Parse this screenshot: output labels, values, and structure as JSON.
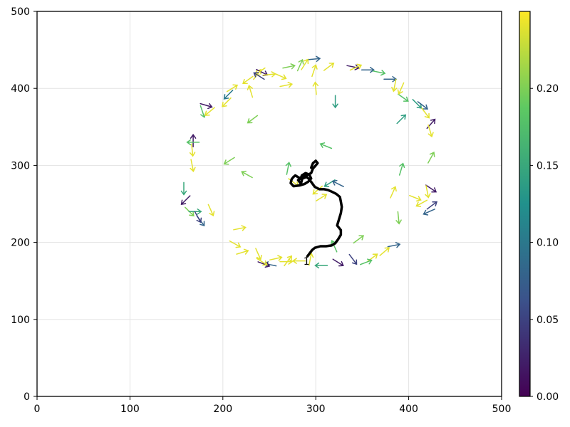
{
  "chart_data": {
    "type": "quiver",
    "title": "",
    "xlabel": "",
    "ylabel": "",
    "xlim": [
      0,
      500
    ],
    "ylim": [
      0,
      500
    ],
    "grid": true,
    "x_ticks": [
      "0",
      "100",
      "200",
      "300",
      "400",
      "500"
    ],
    "y_ticks": [
      "0",
      "100",
      "200",
      "300",
      "400",
      "500"
    ],
    "colorbar": {
      "colormap": "viridis",
      "range": [
        0,
        0.25
      ],
      "ticks": [
        "0.00",
        "0.05",
        "0.10",
        "0.15",
        "0.20"
      ],
      "stops": [
        "#440154",
        "#3b528b",
        "#21918c",
        "#5ec962",
        "#fde725"
      ]
    },
    "annotation": {
      "text": "1",
      "x": 290,
      "y": 171
    },
    "trajectory_color": "#000000",
    "trajectory": [
      [
        291,
        182
      ],
      [
        296,
        190
      ],
      [
        299,
        193
      ],
      [
        305,
        195
      ],
      [
        311,
        195
      ],
      [
        317,
        196
      ],
      [
        321,
        199
      ],
      [
        324,
        204
      ],
      [
        327,
        210
      ],
      [
        327,
        216
      ],
      [
        323,
        222
      ],
      [
        325,
        230
      ],
      [
        327,
        238
      ],
      [
        328,
        246
      ],
      [
        327,
        253
      ],
      [
        326,
        259
      ],
      [
        322,
        263
      ],
      [
        317,
        266
      ],
      [
        313,
        268
      ],
      [
        309,
        269
      ],
      [
        304,
        269
      ],
      [
        299,
        272
      ],
      [
        296,
        277
      ],
      [
        293,
        282
      ],
      [
        290,
        285
      ],
      [
        286,
        283
      ],
      [
        282,
        284
      ],
      [
        278,
        287
      ],
      [
        276,
        285
      ],
      [
        274,
        282
      ],
      [
        273,
        277
      ],
      [
        276,
        273
      ],
      [
        283,
        274
      ],
      [
        288,
        276
      ],
      [
        292,
        279
      ],
      [
        295,
        283
      ],
      [
        293,
        288
      ],
      [
        289,
        290
      ],
      [
        285,
        287
      ],
      [
        284,
        283
      ],
      [
        281,
        281
      ],
      [
        284,
        276
      ],
      [
        286,
        285
      ],
      [
        290,
        287
      ],
      [
        295,
        290
      ],
      [
        297,
        296
      ],
      [
        300,
        300
      ],
      [
        302,
        303
      ],
      [
        300,
        306
      ],
      [
        297,
        303
      ],
      [
        295,
        297
      ]
    ],
    "vectors": [
      [
        168,
        332,
        0,
        1,
        0.02
      ],
      [
        158,
        270,
        0,
        -1,
        0.15
      ],
      [
        160,
        255,
        -0.7,
        -0.7,
        0.02
      ],
      [
        164,
        240,
        0.7,
        -0.7,
        0.2
      ],
      [
        170,
        240,
        1,
        0,
        0.15
      ],
      [
        176,
        228,
        0.6,
        -0.8,
        0.08
      ],
      [
        173,
        233,
        0.5,
        -0.9,
        0.05
      ],
      [
        187,
        242,
        0.4,
        -0.9,
        0.24
      ],
      [
        167,
        300,
        0.2,
        -1,
        0.24
      ],
      [
        167,
        320,
        0.1,
        -1,
        0.24
      ],
      [
        168,
        330,
        -1,
        0,
        0.18
      ],
      [
        182,
        378,
        1,
        -0.3,
        0.02
      ],
      [
        178,
        370,
        0.3,
        -0.9,
        0.18
      ],
      [
        186,
        370,
        -0.6,
        -0.5,
        0.24
      ],
      [
        204,
        382,
        -0.6,
        -0.6,
        0.24
      ],
      [
        206,
        392,
        -0.7,
        -0.7,
        0.1
      ],
      [
        210,
        400,
        0.8,
        0.5,
        0.24
      ],
      [
        227,
        411,
        -0.7,
        -0.5,
        0.24
      ],
      [
        237,
        418,
        0.6,
        0.8,
        0.24
      ],
      [
        242,
        421,
        1,
        -0.5,
        0.02
      ],
      [
        250,
        418,
        1,
        0.1,
        0.24
      ],
      [
        262,
        416,
        0.9,
        -0.4,
        0.24
      ],
      [
        268,
        404,
        1,
        0.2,
        0.24
      ],
      [
        271,
        428,
        1,
        0.2,
        0.2
      ],
      [
        283,
        430,
        0.4,
        0.9,
        0.2
      ],
      [
        298,
        438,
        1,
        0.1,
        0.08
      ],
      [
        298,
        423,
        0.3,
        0.9,
        0.24
      ],
      [
        300,
        400,
        -0.1,
        1,
        0.24
      ],
      [
        288,
        431,
        0.5,
        0.8,
        0.24
      ],
      [
        314,
        428,
        0.8,
        0.6,
        0.24
      ],
      [
        340,
        428,
        1,
        -0.2,
        0.02
      ],
      [
        343,
        427,
        0.9,
        0.4,
        0.24
      ],
      [
        356,
        424,
        1,
        0,
        0.08
      ],
      [
        368,
        421,
        1,
        -0.2,
        0.18
      ],
      [
        380,
        412,
        1,
        0,
        0.08
      ],
      [
        385,
        404,
        -0.2,
        -1,
        0.24
      ],
      [
        394,
        388,
        1,
        -0.7,
        0.18
      ],
      [
        409,
        380,
        0.7,
        -0.7,
        0.14
      ],
      [
        415,
        378,
        0.8,
        -0.6,
        0.08
      ],
      [
        418,
        368,
        0.6,
        -0.8,
        0.24
      ],
      [
        424,
        354,
        0.7,
        0.8,
        0.02
      ],
      [
        423,
        345,
        0.3,
        -1,
        0.24
      ],
      [
        424,
        310,
        0.5,
        0.9,
        0.2
      ],
      [
        424,
        270,
        0.9,
        -0.6,
        0.02
      ],
      [
        420,
        266,
        0.2,
        -1,
        0.24
      ],
      [
        425,
        248,
        0.8,
        0.6,
        0.05
      ],
      [
        422,
        240,
        -0.9,
        -0.4,
        0.08
      ],
      [
        414,
        251,
        -0.9,
        -0.5,
        0.24
      ],
      [
        407,
        258,
        1,
        -0.4,
        0.24
      ],
      [
        392,
        360,
        0.7,
        0.7,
        0.14
      ],
      [
        392,
        295,
        0.3,
        1,
        0.18
      ],
      [
        383,
        265,
        0.4,
        0.9,
        0.24
      ],
      [
        389,
        232,
        0.1,
        -1,
        0.2
      ],
      [
        384,
        196,
        1,
        0.2,
        0.08
      ],
      [
        374,
        188,
        0.7,
        0.6,
        0.24
      ],
      [
        361,
        180,
        0.8,
        0.6,
        0.24
      ],
      [
        354,
        174,
        0.8,
        0.3,
        0.18
      ],
      [
        340,
        178,
        0.6,
        -0.8,
        0.05
      ],
      [
        324,
        174,
        0.8,
        -0.5,
        0.02
      ],
      [
        346,
        204,
        0.8,
        0.6,
        0.2
      ],
      [
        320,
        195,
        -0.4,
        0.9,
        0.18
      ],
      [
        306,
        170,
        -1,
        0,
        0.15
      ],
      [
        294,
        178,
        0.2,
        1,
        0.24
      ],
      [
        282,
        176,
        -1,
        0,
        0.24
      ],
      [
        268,
        175,
        1,
        0,
        0.24
      ],
      [
        257,
        179,
        0.9,
        0.2,
        0.24
      ],
      [
        251,
        171,
        -1,
        0.2,
        0.08
      ],
      [
        244,
        172,
        0.8,
        -0.3,
        0.02
      ],
      [
        238,
        185,
        0.4,
        -0.9,
        0.24
      ],
      [
        221,
        187,
        1,
        0.3,
        0.24
      ],
      [
        213,
        198,
        0.9,
        -0.5,
        0.24
      ],
      [
        218,
        218,
        1,
        0.2,
        0.24
      ],
      [
        242,
        175,
        0.8,
        -0.5,
        0.24
      ],
      [
        270,
        176,
        0.6,
        0.8,
        0.24
      ],
      [
        270,
        296,
        0.2,
        1,
        0.18
      ],
      [
        226,
        288,
        -0.9,
        0.5,
        0.2
      ],
      [
        207,
        306,
        -0.8,
        -0.5,
        0.2
      ],
      [
        232,
        360,
        -0.8,
        -0.6,
        0.2
      ],
      [
        240,
        422,
        -0.7,
        -0.5,
        0.24
      ],
      [
        239,
        416,
        -0.8,
        0.5,
        0.05
      ],
      [
        230,
        396,
        -0.3,
        1,
        0.24
      ],
      [
        321,
        383,
        0,
        -1,
        0.14
      ],
      [
        311,
        325,
        -1,
        0.4,
        0.18
      ],
      [
        315,
        277,
        -0.8,
        -0.5,
        0.14
      ],
      [
        324,
        276,
        -1,
        0.5,
        0.08
      ],
      [
        302,
        268,
        -0.7,
        -0.6,
        0.24
      ],
      [
        306,
        258,
        0.8,
        0.5,
        0.24
      ],
      [
        276,
        278,
        0.8,
        -0.6,
        0.24
      ],
      [
        392,
        400,
        -0.4,
        -0.9,
        0.24
      ]
    ]
  }
}
